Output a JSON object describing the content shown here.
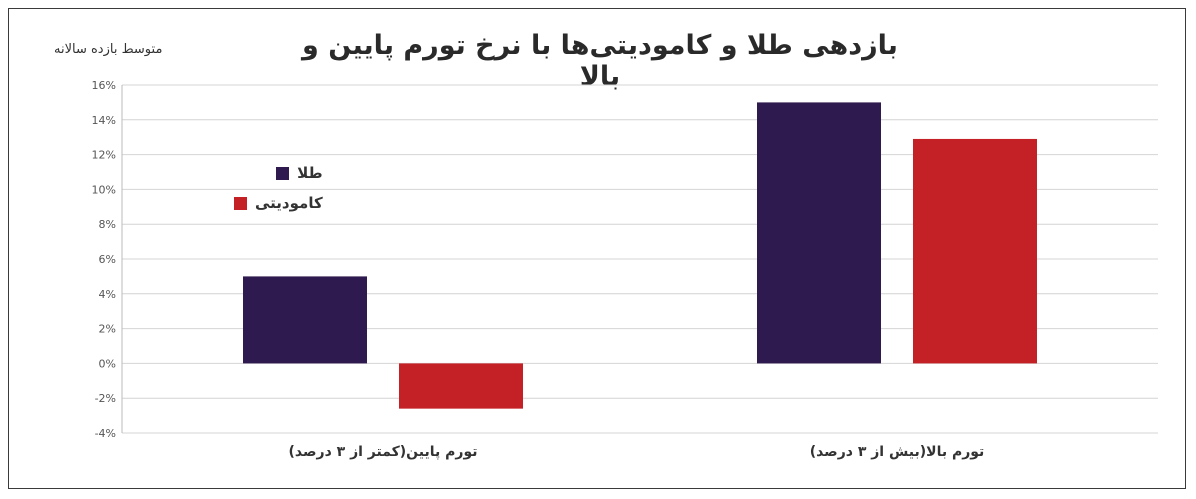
{
  "chart_data": {
    "type": "bar",
    "title": "بازدهی طلا و کامودیتی‌ها با نرخ تورم پایین و بالا",
    "ylabel": "متوسط بازده سالانه",
    "categories": [
      "تورم پایین(کمتر از ۳ درصد)",
      "تورم بالا(بیش از ۳ درصد)"
    ],
    "series": [
      {
        "name": "طلا",
        "color": "#2e1a4e",
        "values": [
          5,
          15
        ]
      },
      {
        "name": "کامودیتی",
        "color": "#c42127",
        "values": [
          -2.6,
          12.9
        ]
      }
    ],
    "ylim": [
      -4,
      16
    ],
    "yticks": [
      "-4%",
      "-2%",
      "0%",
      "2%",
      "4%",
      "6%",
      "8%",
      "10%",
      "12%",
      "14%",
      "16%"
    ],
    "grid": true,
    "legend_position": "left"
  }
}
